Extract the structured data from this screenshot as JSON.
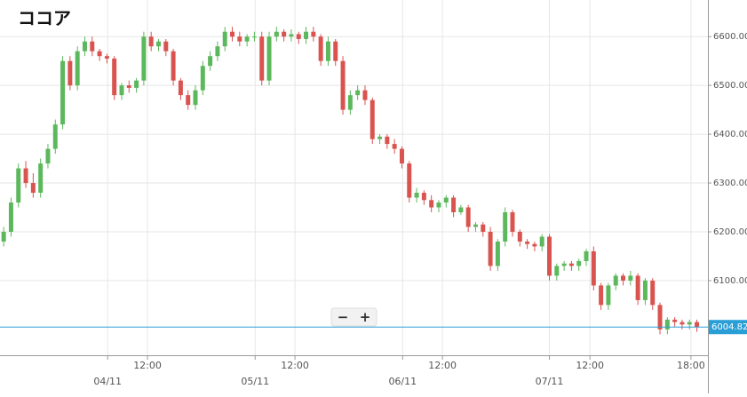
{
  "chart_data": {
    "type": "candlestick",
    "title": "ココア",
    "open": [
      6180,
      6200,
      6260,
      6330,
      6300,
      6280,
      6340,
      6370,
      6420,
      6550,
      6500,
      6570,
      6590,
      6570,
      6560,
      6555,
      6480,
      6500,
      6495,
      6510,
      6600,
      6580,
      6590,
      6570,
      6510,
      6480,
      6460,
      6490,
      6540,
      6560,
      6580,
      6610,
      6600,
      6590,
      6600,
      6600,
      6510,
      6600,
      6610,
      6600,
      6605,
      6595,
      6610,
      6600,
      6550,
      6590,
      6550,
      6450,
      6480,
      6490,
      6470,
      6390,
      6395,
      6380,
      6370,
      6340,
      6270,
      6280,
      6265,
      6250,
      6260,
      6270,
      6240,
      6250,
      6210,
      6215,
      6200,
      6130,
      6180,
      6240,
      6200,
      6180,
      6175,
      6170,
      6190,
      6110,
      6130,
      6135,
      6130,
      6140,
      6160,
      6090,
      6050,
      6090,
      6110,
      6100,
      6110,
      6060,
      6100,
      6050,
      6000,
      6020,
      6015,
      6010,
      6015
    ],
    "high": [
      6210,
      6270,
      6340,
      6345,
      6320,
      6350,
      6380,
      6430,
      6560,
      6560,
      6580,
      6600,
      6600,
      6575,
      6565,
      6560,
      6505,
      6510,
      6515,
      6610,
      6610,
      6595,
      6595,
      6575,
      6515,
      6490,
      6500,
      6550,
      6570,
      6590,
      6620,
      6620,
      6610,
      6605,
      6610,
      6610,
      6610,
      6620,
      6615,
      6615,
      6610,
      6620,
      6620,
      6605,
      6600,
      6595,
      6560,
      6490,
      6500,
      6500,
      6475,
      6400,
      6400,
      6390,
      6375,
      6345,
      6290,
      6285,
      6275,
      6265,
      6275,
      6275,
      6255,
      6255,
      6220,
      6220,
      6210,
      6185,
      6250,
      6245,
      6205,
      6185,
      6180,
      6195,
      6195,
      6135,
      6140,
      6140,
      6145,
      6165,
      6170,
      6095,
      6095,
      6115,
      6115,
      6120,
      6115,
      6105,
      6105,
      6055,
      6025,
      6025,
      6020,
      6020,
      6020
    ],
    "low": [
      6170,
      6190,
      6250,
      6290,
      6270,
      6270,
      6330,
      6360,
      6410,
      6490,
      6490,
      6560,
      6560,
      6550,
      6545,
      6470,
      6470,
      6485,
      6485,
      6500,
      6570,
      6570,
      6560,
      6500,
      6470,
      6450,
      6450,
      6480,
      6530,
      6550,
      6570,
      6590,
      6580,
      6580,
      6590,
      6500,
      6500,
      6590,
      6590,
      6590,
      6585,
      6585,
      6590,
      6540,
      6540,
      6540,
      6440,
      6440,
      6470,
      6460,
      6380,
      6380,
      6370,
      6360,
      6330,
      6260,
      6260,
      6255,
      6240,
      6240,
      6250,
      6230,
      6235,
      6200,
      6200,
      6190,
      6120,
      6120,
      6170,
      6190,
      6170,
      6165,
      6160,
      6160,
      6100,
      6100,
      6120,
      6120,
      6120,
      6130,
      6080,
      6040,
      6040,
      6080,
      6090,
      6090,
      6050,
      6050,
      6040,
      5990,
      5990,
      6005,
      6000,
      6000,
      5995
    ],
    "close": [
      6200,
      6260,
      6330,
      6300,
      6280,
      6340,
      6370,
      6420,
      6550,
      6500,
      6570,
      6590,
      6570,
      6560,
      6555,
      6480,
      6500,
      6495,
      6510,
      6600,
      6580,
      6590,
      6570,
      6510,
      6480,
      6460,
      6490,
      6540,
      6560,
      6580,
      6610,
      6600,
      6590,
      6600,
      6600,
      6510,
      6600,
      6610,
      6600,
      6605,
      6595,
      6610,
      6600,
      6550,
      6590,
      6550,
      6450,
      6480,
      6490,
      6470,
      6390,
      6395,
      6380,
      6370,
      6340,
      6270,
      6280,
      6265,
      6250,
      6260,
      6270,
      6240,
      6250,
      6210,
      6215,
      6200,
      6130,
      6180,
      6240,
      6200,
      6180,
      6175,
      6170,
      6190,
      6110,
      6130,
      6135,
      6130,
      6140,
      6160,
      6090,
      6050,
      6090,
      6110,
      6100,
      6110,
      6060,
      6100,
      6050,
      6000,
      6020,
      6015,
      6010,
      6015,
      6005
    ],
    "up_color": "#5cb85c",
    "down_color": "#d9534f",
    "current_price": 6004.82,
    "current_price_color": "#2a9fd6",
    "ylim": [
      5947,
      6675
    ],
    "yticks": [
      {
        "value": 6100,
        "label": "6100.00"
      },
      {
        "value": 6200,
        "label": "6200.00"
      },
      {
        "value": 6300,
        "label": "6300.00"
      },
      {
        "value": 6400,
        "label": "6400.00"
      },
      {
        "value": 6500,
        "label": "6500.00"
      },
      {
        "value": 6600,
        "label": "6600.00"
      }
    ],
    "xlim": [
      0,
      96
    ],
    "xticks": [
      {
        "value": 14.6,
        "label": "04/11"
      },
      {
        "value": 20,
        "label": "12:00"
      },
      {
        "value": 34.6,
        "label": "05/11"
      },
      {
        "value": 40,
        "label": "12:00"
      },
      {
        "value": 54.6,
        "label": "06/11"
      },
      {
        "value": 60,
        "label": "12:00"
      },
      {
        "value": 74.5,
        "label": "07/11"
      },
      {
        "value": 80,
        "label": "12:00"
      },
      {
        "value": 93.7,
        "label": "18:00"
      }
    ],
    "grid": true
  },
  "controls": {
    "zoom_out": "−",
    "zoom_in": "+"
  }
}
